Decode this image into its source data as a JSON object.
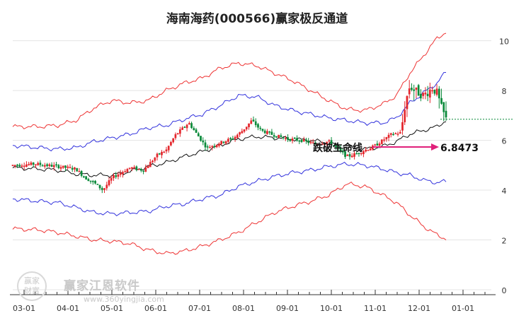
{
  "chart_data": {
    "type": "candlestick",
    "title": "海南海药(000566)赢家极反通道",
    "xlabel": "",
    "ylabel": "",
    "ylim": [
      0,
      10.5
    ],
    "y_ticks": [
      "0",
      "2",
      "4",
      "6",
      "8",
      "10"
    ],
    "x_ticks": [
      "03-01",
      "04-01",
      "05-01",
      "06-01",
      "07-01",
      "08-01",
      "09-01",
      "10-01",
      "11-01",
      "12-01",
      "01-01"
    ],
    "grid": true,
    "price_path": [
      [
        0,
        5.0
      ],
      [
        5,
        5.05
      ],
      [
        10,
        4.95
      ],
      [
        14,
        4.85
      ],
      [
        16,
        4.5
      ],
      [
        18,
        4.3
      ],
      [
        20,
        4.0
      ],
      [
        22,
        4.5
      ],
      [
        26,
        4.9
      ],
      [
        29,
        4.8
      ],
      [
        32,
        5.4
      ],
      [
        34,
        5.6
      ],
      [
        36,
        6.2
      ],
      [
        39,
        6.7
      ],
      [
        41,
        6.2
      ],
      [
        43,
        5.7
      ],
      [
        46,
        5.9
      ],
      [
        49,
        6.1
      ],
      [
        51,
        6.4
      ],
      [
        53,
        6.8
      ],
      [
        55,
        6.4
      ],
      [
        58,
        6.2
      ],
      [
        61,
        6.05
      ],
      [
        64,
        6.0
      ],
      [
        67,
        5.85
      ],
      [
        70,
        5.95
      ],
      [
        72,
        5.65
      ],
      [
        74,
        5.35
      ],
      [
        76,
        5.45
      ],
      [
        78,
        5.6
      ],
      [
        80,
        5.75
      ],
      [
        82,
        6.0
      ],
      [
        84,
        6.25
      ],
      [
        86,
        6.3
      ],
      [
        87,
        7.5
      ],
      [
        88,
        8.2
      ],
      [
        89,
        8.0
      ],
      [
        91,
        7.8
      ],
      [
        93,
        8.1
      ],
      [
        94,
        7.9
      ],
      [
        95,
        7.3
      ],
      [
        96,
        6.85
      ]
    ],
    "series": [
      {
        "role": "upper-outer",
        "color": "#ee3333",
        "values": [
          [
            0,
            6.55
          ],
          [
            6,
            6.55
          ],
          [
            10,
            6.6
          ],
          [
            14,
            6.8
          ],
          [
            18,
            7.3
          ],
          [
            22,
            7.6
          ],
          [
            26,
            7.5
          ],
          [
            30,
            7.6
          ],
          [
            34,
            8.0
          ],
          [
            38,
            8.3
          ],
          [
            42,
            8.5
          ],
          [
            46,
            8.9
          ],
          [
            50,
            9.1
          ],
          [
            54,
            9.0
          ],
          [
            58,
            8.7
          ],
          [
            62,
            8.4
          ],
          [
            66,
            8.0
          ],
          [
            70,
            7.6
          ],
          [
            74,
            7.25
          ],
          [
            78,
            7.2
          ],
          [
            82,
            7.45
          ],
          [
            85,
            7.8
          ],
          [
            88,
            8.7
          ],
          [
            91,
            9.4
          ],
          [
            94,
            10.1
          ],
          [
            96,
            10.35
          ]
        ]
      },
      {
        "role": "upper-inner",
        "color": "#3333dd",
        "values": [
          [
            0,
            5.8
          ],
          [
            6,
            5.7
          ],
          [
            10,
            5.65
          ],
          [
            14,
            5.7
          ],
          [
            18,
            5.95
          ],
          [
            22,
            6.1
          ],
          [
            26,
            6.25
          ],
          [
            30,
            6.5
          ],
          [
            34,
            6.6
          ],
          [
            38,
            6.85
          ],
          [
            42,
            7.05
          ],
          [
            46,
            7.4
          ],
          [
            50,
            7.8
          ],
          [
            54,
            7.75
          ],
          [
            58,
            7.4
          ],
          [
            62,
            7.2
          ],
          [
            66,
            7.05
          ],
          [
            70,
            6.9
          ],
          [
            74,
            6.8
          ],
          [
            78,
            6.7
          ],
          [
            82,
            6.7
          ],
          [
            85,
            6.9
          ],
          [
            88,
            7.5
          ],
          [
            91,
            7.9
          ],
          [
            94,
            8.3
          ],
          [
            96,
            8.75
          ]
        ]
      },
      {
        "role": "middle",
        "color": "#111111",
        "values": [
          [
            0,
            4.9
          ],
          [
            6,
            4.85
          ],
          [
            10,
            4.8
          ],
          [
            14,
            4.65
          ],
          [
            18,
            4.6
          ],
          [
            22,
            4.6
          ],
          [
            26,
            4.75
          ],
          [
            30,
            4.95
          ],
          [
            34,
            5.1
          ],
          [
            38,
            5.35
          ],
          [
            42,
            5.55
          ],
          [
            46,
            5.8
          ],
          [
            50,
            6.05
          ],
          [
            54,
            6.15
          ],
          [
            58,
            6.1
          ],
          [
            62,
            6.05
          ],
          [
            66,
            6.0
          ],
          [
            70,
            5.9
          ],
          [
            74,
            5.7
          ],
          [
            78,
            5.65
          ],
          [
            82,
            5.75
          ],
          [
            85,
            5.95
          ],
          [
            88,
            6.25
          ],
          [
            91,
            6.4
          ],
          [
            94,
            6.55
          ],
          [
            96,
            6.8
          ]
        ]
      },
      {
        "role": "lower-inner",
        "color": "#3333dd",
        "values": [
          [
            0,
            3.65
          ],
          [
            6,
            3.55
          ],
          [
            10,
            3.5
          ],
          [
            14,
            3.3
          ],
          [
            18,
            3.1
          ],
          [
            22,
            3.05
          ],
          [
            26,
            3.1
          ],
          [
            30,
            3.15
          ],
          [
            34,
            3.35
          ],
          [
            38,
            3.45
          ],
          [
            42,
            3.65
          ],
          [
            46,
            3.8
          ],
          [
            50,
            4.15
          ],
          [
            54,
            4.35
          ],
          [
            58,
            4.55
          ],
          [
            62,
            4.7
          ],
          [
            66,
            4.8
          ],
          [
            70,
            4.95
          ],
          [
            74,
            5.05
          ],
          [
            78,
            5.0
          ],
          [
            82,
            4.85
          ],
          [
            85,
            4.7
          ],
          [
            88,
            4.6
          ],
          [
            91,
            4.4
          ],
          [
            94,
            4.3
          ],
          [
            96,
            4.35
          ]
        ]
      },
      {
        "role": "lower-outer",
        "color": "#ee3333",
        "values": [
          [
            0,
            2.45
          ],
          [
            6,
            2.4
          ],
          [
            10,
            2.3
          ],
          [
            14,
            2.15
          ],
          [
            18,
            2.0
          ],
          [
            22,
            1.95
          ],
          [
            26,
            1.85
          ],
          [
            30,
            1.6
          ],
          [
            34,
            1.45
          ],
          [
            38,
            1.55
          ],
          [
            42,
            1.75
          ],
          [
            46,
            2.0
          ],
          [
            50,
            2.3
          ],
          [
            54,
            2.7
          ],
          [
            58,
            3.1
          ],
          [
            62,
            3.35
          ],
          [
            66,
            3.55
          ],
          [
            70,
            3.8
          ],
          [
            74,
            4.25
          ],
          [
            78,
            4.15
          ],
          [
            82,
            3.8
          ],
          [
            85,
            3.5
          ],
          [
            88,
            3.0
          ],
          [
            91,
            2.55
          ],
          [
            94,
            2.2
          ],
          [
            96,
            2.05
          ]
        ]
      }
    ],
    "candle_colors": {
      "up": "#e4262c",
      "down": "#0a8a3a"
    },
    "annotation": {
      "label": "跌破生命线",
      "value_label": "6.8473",
      "value": 6.8473,
      "label_color": "#111111",
      "arrow_color": "#e0207a",
      "dash_color": "#0a8a3a"
    }
  },
  "watermark": {
    "logo_text": "赢家\n财富",
    "brand": "赢家江恩软件",
    "url": "www.360yingjia.com"
  }
}
